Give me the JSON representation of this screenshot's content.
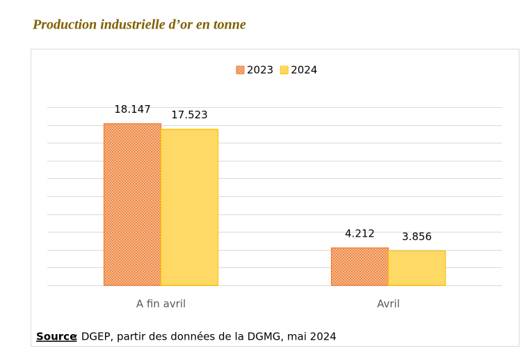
{
  "chart_data": {
    "type": "bar",
    "title": "Production industrielle d’or en tonne",
    "categories": [
      "A fin avril",
      "Avril"
    ],
    "series": [
      {
        "name": "2023",
        "color": "#ed7d31",
        "values": [
          18.147,
          4.212
        ]
      },
      {
        "name": "2024",
        "color": "#ffc000",
        "values": [
          17.523,
          3.856
        ]
      }
    ],
    "ylim": [
      0,
      20
    ],
    "yticks": [
      0,
      2,
      4,
      6,
      8,
      10,
      12,
      14,
      16,
      18,
      20
    ],
    "grid": true,
    "legend": "top",
    "source": {
      "label": "Source",
      "text": ": DGEP,  partir des données de la DGMG, mai 2024"
    }
  }
}
